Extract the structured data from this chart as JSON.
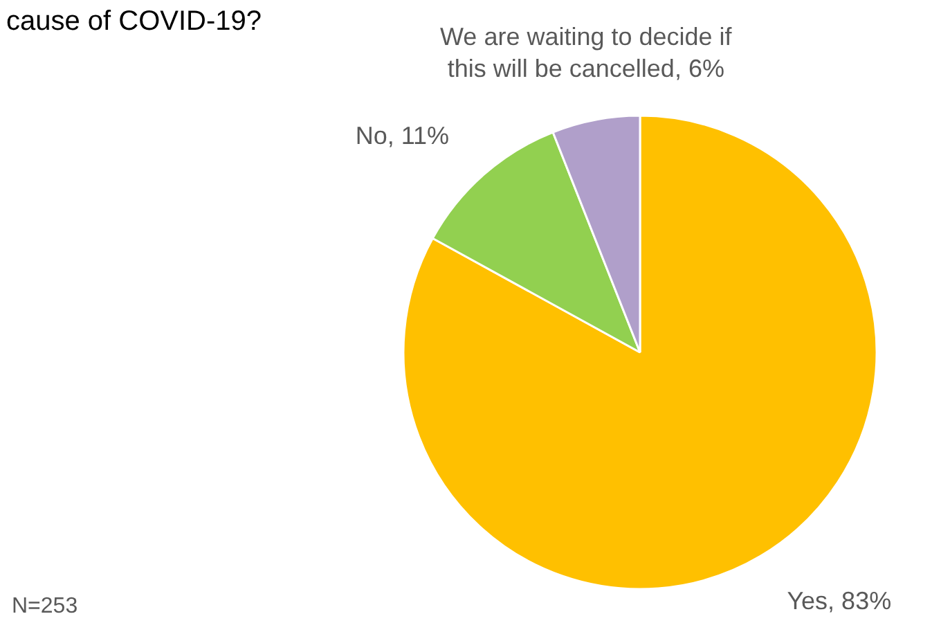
{
  "chart_data": {
    "type": "pie",
    "title": "cause of COVID-19?",
    "categories": [
      "Yes",
      "No",
      "We are waiting to decide if this will be cancelled"
    ],
    "values": [
      83,
      11,
      6
    ],
    "value_labels": [
      "83%",
      "11%",
      "6%"
    ],
    "colors": [
      "#ffc000",
      "#92d050",
      "#b09fca"
    ],
    "annotations": [
      "N=253"
    ]
  }
}
